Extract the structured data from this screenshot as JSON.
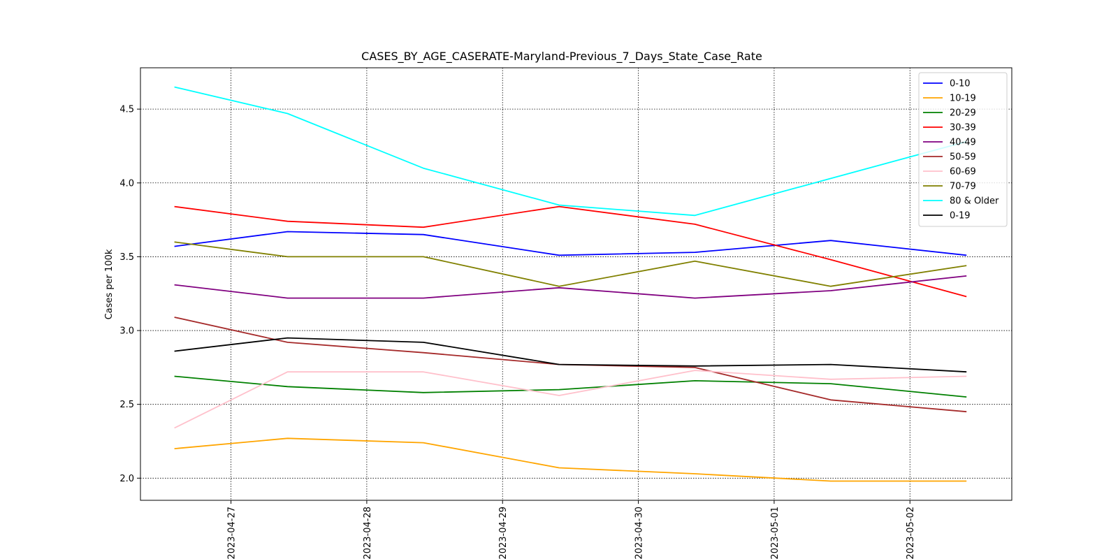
{
  "chart_data": {
    "type": "line",
    "title": "CASES_BY_AGE_CASERATE-Maryland-Previous_7_Days_State_Case_Rate",
    "xlabel": "",
    "ylabel": "Cases per 100k",
    "x": [
      "2023-04-26 14:00",
      "2023-04-27 10:00",
      "2023-04-28 10:00",
      "2023-04-29 10:00",
      "2023-04-30 10:00",
      "2023-05-01 10:00",
      "2023-05-02 10:00"
    ],
    "xlim": [
      "2023-04-26 08:00",
      "2023-05-02 18:00"
    ],
    "xticks": [
      "2023-04-27",
      "2023-04-28",
      "2023-04-29",
      "2023-04-30",
      "2023-05-01",
      "2023-05-02"
    ],
    "ylim": [
      1.85,
      4.78
    ],
    "yticks": [
      "2.0",
      "2.5",
      "3.0",
      "3.5",
      "4.0",
      "4.5"
    ],
    "grid": true,
    "legend_position": "top-right",
    "series": [
      {
        "name": "0-10",
        "color": "#0000ff",
        "values": [
          3.57,
          3.67,
          3.65,
          3.51,
          3.53,
          3.61,
          3.51
        ]
      },
      {
        "name": "10-19",
        "color": "#ffa500",
        "values": [
          2.2,
          2.27,
          2.24,
          2.07,
          2.03,
          1.98,
          1.98
        ]
      },
      {
        "name": "20-29",
        "color": "#008000",
        "values": [
          2.69,
          2.62,
          2.58,
          2.6,
          2.66,
          2.64,
          2.55
        ]
      },
      {
        "name": "30-39",
        "color": "#ff0000",
        "values": [
          3.84,
          3.74,
          3.7,
          3.84,
          3.72,
          3.48,
          3.23
        ]
      },
      {
        "name": "40-49",
        "color": "#800080",
        "values": [
          3.31,
          3.22,
          3.22,
          3.29,
          3.22,
          3.27,
          3.37
        ]
      },
      {
        "name": "50-59",
        "color": "#a52a2a",
        "values": [
          3.09,
          2.92,
          2.85,
          2.77,
          2.75,
          2.53,
          2.45
        ]
      },
      {
        "name": "60-69",
        "color": "#ffc0cb",
        "values": [
          2.34,
          2.72,
          2.72,
          2.56,
          2.73,
          2.67,
          2.69
        ]
      },
      {
        "name": "70-79",
        "color": "#808000",
        "values": [
          3.6,
          3.5,
          3.5,
          3.3,
          3.47,
          3.3,
          3.44
        ]
      },
      {
        "name": "80 & Older",
        "color": "#00ffff",
        "values": [
          4.65,
          4.47,
          4.1,
          3.85,
          3.78,
          4.03,
          4.28
        ]
      },
      {
        "name": "0-19",
        "color": "#000000",
        "values": [
          2.86,
          2.95,
          2.92,
          2.77,
          2.76,
          2.77,
          2.72
        ]
      }
    ]
  }
}
